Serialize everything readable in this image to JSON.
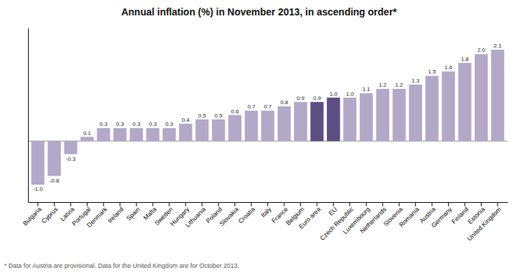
{
  "chart_data": {
    "type": "bar",
    "title": "Annual inflation (%) in November 2013, in ascending order*",
    "footnote": "* Data for Austria are provisional. Data for the United Kingdom are for October 2013.",
    "categories": [
      "Bulgaria",
      "Cyprus",
      "Latvia",
      "Portugal",
      "Denmark",
      "Ireland",
      "Spain",
      "Malta",
      "Sweden",
      "Hungary",
      "Lithuania",
      "Poland",
      "Slovakia",
      "Croatia",
      "Italy",
      "France",
      "Belgium",
      "Euro area",
      "EU",
      "Czech Republic",
      "Luxembourg",
      "Netherlands",
      "Slovenia",
      "Romania",
      "Austria",
      "Germany",
      "Finland",
      "Estonia",
      "United Kingdom"
    ],
    "values": [
      -1.0,
      -0.8,
      -0.3,
      0.1,
      0.3,
      0.3,
      0.3,
      0.3,
      0.3,
      0.4,
      0.5,
      0.5,
      0.6,
      0.7,
      0.7,
      0.8,
      0.9,
      0.9,
      1.0,
      1.0,
      1.1,
      1.2,
      1.2,
      1.3,
      1.5,
      1.6,
      1.8,
      2.0,
      2.1
    ],
    "value_labels": [
      "-1.0",
      "-0.8",
      "-0.3",
      "0.1",
      "0.3",
      "0.3",
      "0.3",
      "0.3",
      "0.3",
      "0.4",
      "0.5",
      "0.5",
      "0.6",
      "0.7",
      "0.7",
      "0.8",
      "0.9",
      "0.9",
      "1.0",
      "1.0",
      "1.1",
      "1.2",
      "1.2",
      "1.3",
      "1.5",
      "1.6",
      "1.8",
      "2.0",
      "2.1"
    ],
    "colors": [
      "#b3a8c8",
      "#b3a8c8",
      "#b3a8c8",
      "#b3a8c8",
      "#b3a8c8",
      "#b3a8c8",
      "#b3a8c8",
      "#b3a8c8",
      "#b3a8c8",
      "#b3a8c8",
      "#b3a8c8",
      "#b3a8c8",
      "#b3a8c8",
      "#b3a8c8",
      "#b3a8c8",
      "#b3a8c8",
      "#b3a8c8",
      "#5c4d82",
      "#5c4d82",
      "#b3a8c8",
      "#b3a8c8",
      "#b3a8c8",
      "#b3a8c8",
      "#b3a8c8",
      "#b3a8c8",
      "#b3a8c8",
      "#b3a8c8",
      "#b3a8c8",
      "#b3a8c8"
    ],
    "ylim": [
      -1.4,
      2.6
    ],
    "data_labels": true,
    "tick_labels": "x"
  }
}
